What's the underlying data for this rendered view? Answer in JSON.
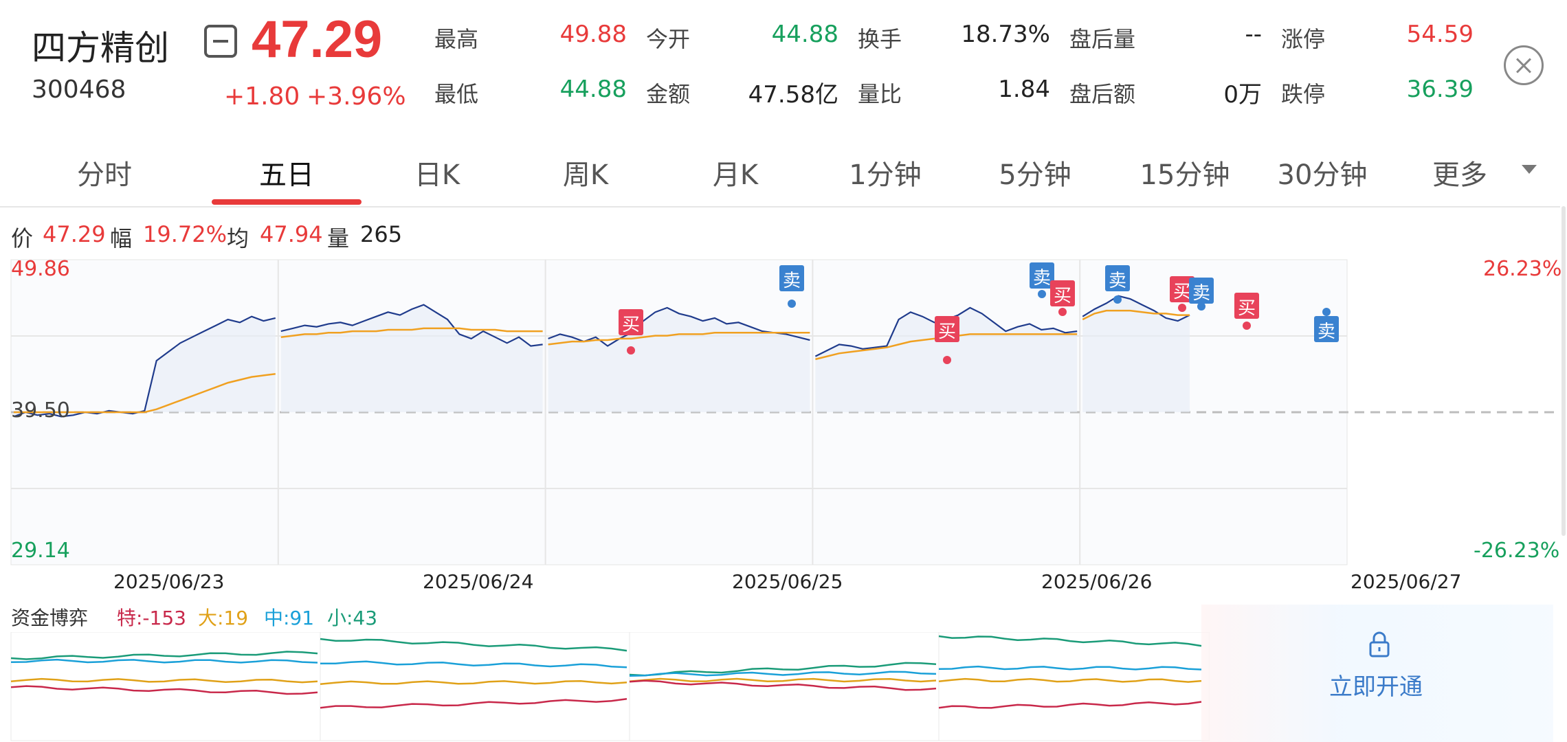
{
  "header": {
    "name": "四方精创",
    "code": "300468",
    "price": "47.29",
    "change": "+1.80",
    "change_pct": "+3.96%"
  },
  "quotes": [
    {
      "label": "最高",
      "value": "49.88",
      "color": "red"
    },
    {
      "label": "今开",
      "value": "44.88",
      "color": "green"
    },
    {
      "label": "换手",
      "value": "18.73%",
      "color": "dark"
    },
    {
      "label": "盘后量",
      "value": "--",
      "color": "dark"
    },
    {
      "label": "涨停",
      "value": "54.59",
      "color": "red"
    },
    {
      "label": "最低",
      "value": "44.88",
      "color": "green"
    },
    {
      "label": "金额",
      "value": "47.58亿",
      "color": "dark"
    },
    {
      "label": "量比",
      "value": "1.84",
      "color": "dark"
    },
    {
      "label": "盘后额",
      "value": "0万",
      "color": "dark"
    },
    {
      "label": "跌停",
      "value": "36.39",
      "color": "green"
    }
  ],
  "tabs": [
    "分时",
    "五日",
    "日K",
    "周K",
    "月K",
    "1分钟",
    "5分钟",
    "15分钟",
    "30分钟",
    "更多"
  ],
  "active_tab": 1,
  "info_bar": {
    "price_label": "价",
    "price": "47.29",
    "amp_label": "幅",
    "amp": "19.72%",
    "avg_label": "均",
    "avg": "47.94",
    "vol_label": "量",
    "vol": "265"
  },
  "chart_data": {
    "type": "line",
    "y_max_label": "49.86",
    "y_mid_label": "39.50",
    "y_min_label": "29.14",
    "pct_max_label": "26.23%",
    "pct_min_label": "-26.23%",
    "ylim": [
      29.14,
      49.86
    ],
    "prev_close": 39.5,
    "dates": [
      "2025/06/23",
      "2025/06/24",
      "2025/06/25",
      "2025/06/26",
      "2025/06/27"
    ],
    "price_series": [
      [
        39.2,
        39.5,
        39.3,
        39.4,
        39.2,
        39.3,
        39.5,
        39.4,
        39.6,
        39.5,
        39.4,
        39.6,
        43.0,
        43.6,
        44.2,
        44.6,
        45.0,
        45.4,
        45.8,
        45.6,
        46.0,
        45.7,
        45.9
      ],
      [
        45.0,
        45.2,
        45.4,
        45.3,
        45.5,
        45.6,
        45.4,
        45.7,
        46.0,
        46.3,
        46.1,
        46.5,
        46.8,
        46.3,
        45.8,
        44.8,
        44.5,
        45.0,
        44.6,
        44.2,
        44.6,
        44.0,
        44.1
      ],
      [
        44.5,
        44.8,
        44.6,
        44.3,
        44.6,
        44.0,
        44.5,
        44.9,
        45.7,
        46.3,
        46.6,
        46.2,
        46.0,
        45.7,
        45.9,
        45.5,
        45.6,
        45.3,
        45.0,
        44.9,
        44.8,
        44.6,
        44.4
      ],
      [
        43.3,
        43.7,
        44.1,
        44.0,
        43.8,
        43.9,
        44.0,
        45.8,
        46.3,
        46.0,
        45.6,
        45.8,
        46.1,
        46.6,
        46.2,
        45.6,
        45.0,
        45.3,
        45.5,
        45.1,
        45.2,
        44.9,
        45.0
      ],
      [
        46.0,
        46.5,
        46.9,
        47.4,
        47.2,
        46.8,
        46.4,
        45.9,
        45.7,
        46.1
      ]
    ],
    "avg_series": [
      [
        39.5,
        39.5,
        39.5,
        39.5,
        39.5,
        39.5,
        39.5,
        39.5,
        39.5,
        39.5,
        39.5,
        39.5,
        39.7,
        40.0,
        40.3,
        40.6,
        40.9,
        41.2,
        41.5,
        41.7,
        41.9,
        42.0,
        42.1
      ],
      [
        44.6,
        44.7,
        44.8,
        44.8,
        44.9,
        44.9,
        45.0,
        45.0,
        45.0,
        45.1,
        45.1,
        45.1,
        45.2,
        45.2,
        45.2,
        45.2,
        45.1,
        45.1,
        45.1,
        45.0,
        45.0,
        45.0,
        45.0
      ],
      [
        44.1,
        44.2,
        44.3,
        44.3,
        44.4,
        44.4,
        44.5,
        44.5,
        44.6,
        44.7,
        44.7,
        44.8,
        44.8,
        44.8,
        44.9,
        44.9,
        44.9,
        44.9,
        44.9,
        44.9,
        44.9,
        44.9,
        44.9
      ],
      [
        43.1,
        43.3,
        43.5,
        43.6,
        43.7,
        43.8,
        43.9,
        44.1,
        44.3,
        44.4,
        44.5,
        44.6,
        44.7,
        44.8,
        44.8,
        44.8,
        44.8,
        44.8,
        44.8,
        44.8,
        44.8,
        44.8,
        44.8
      ],
      [
        45.8,
        46.2,
        46.4,
        46.4,
        46.4,
        46.3,
        46.2,
        46.2,
        46.1,
        46.1
      ]
    ],
    "signals": [
      {
        "label": "买",
        "type": "buy"
      },
      {
        "label": "卖",
        "type": "sell"
      },
      {
        "label": "买",
        "type": "buy"
      },
      {
        "label": "卖",
        "type": "sell"
      },
      {
        "label": "买",
        "type": "buy"
      },
      {
        "label": "卖",
        "type": "sell"
      },
      {
        "label": "买",
        "type": "buy"
      },
      {
        "label": "卖",
        "type": "sell"
      },
      {
        "label": "买",
        "type": "buy"
      },
      {
        "label": "卖",
        "type": "sell"
      }
    ]
  },
  "fund_flow": {
    "title": "资金博弈",
    "items": [
      {
        "label": "特:-153",
        "color": "#c8284a"
      },
      {
        "label": "大:19",
        "color": "#e0a118"
      },
      {
        "label": "中:91",
        "color": "#1aa0d8"
      },
      {
        "label": "小:43",
        "color": "#1a9b78"
      }
    ],
    "unlock_label": "立即开通"
  },
  "colors": {
    "up": "#e83a3a",
    "down": "#17a05d",
    "price_line": "#1f3b8c",
    "avg_line": "#f0a020",
    "buy_marker": "#e8425a",
    "sell_marker": "#3a82d0"
  }
}
